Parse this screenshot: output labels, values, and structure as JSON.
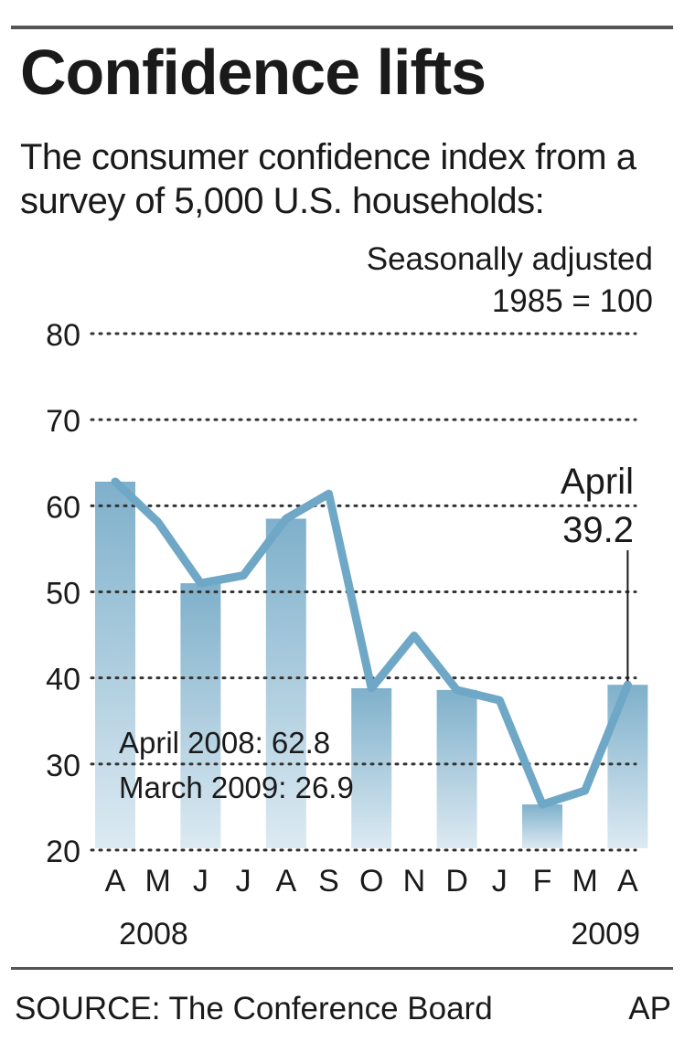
{
  "header": {
    "title": "Confidence lifts",
    "subtitle": "The consumer confidence index from a survey of 5,000 U.S. households:",
    "unit_line1": "Seasonally adjusted",
    "unit_line2": "1985 = 100"
  },
  "footer": {
    "source": "SOURCE: The Conference Board",
    "credit": "AP"
  },
  "colors": {
    "line": "#6fa8c6",
    "bar_top": "#7fb0cb",
    "bar_bottom": "#dceaf2",
    "grid": "#333333",
    "text": "#1a1a1a"
  },
  "chart_data": {
    "type": "line",
    "categories": [
      "A",
      "M",
      "J",
      "J",
      "A",
      "S",
      "O",
      "N",
      "D",
      "J",
      "F",
      "M",
      "A"
    ],
    "year_labels": [
      "2008",
      "2009"
    ],
    "values": [
      62.8,
      58.1,
      51.0,
      51.9,
      58.5,
      61.4,
      38.8,
      44.9,
      38.6,
      37.4,
      25.3,
      26.9,
      39.2
    ],
    "ylim": [
      20,
      80
    ],
    "yticks": [
      80,
      70,
      60,
      50,
      40,
      30,
      20
    ],
    "grid": "dotted horizontal",
    "alternating_bars": true,
    "annotations": {
      "latest_label": "April",
      "latest_value": "39.2",
      "note1": "April 2008: 62.8",
      "note2": "March 2009: 26.9"
    }
  }
}
